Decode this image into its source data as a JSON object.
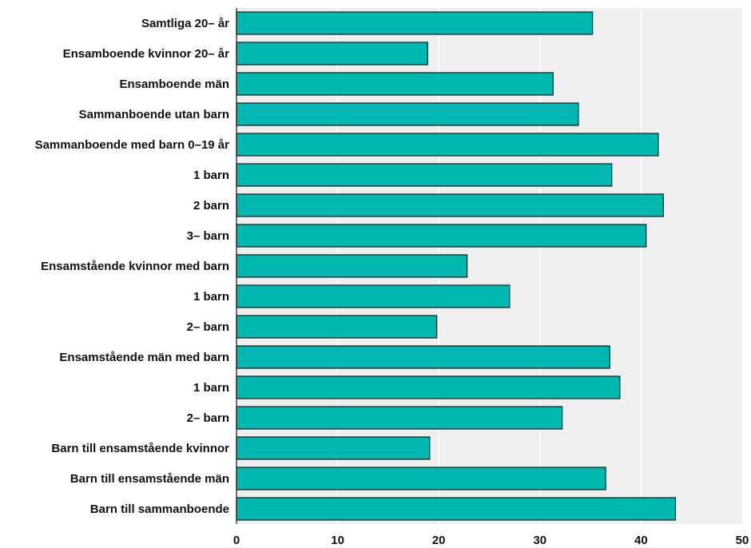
{
  "chart_data": {
    "type": "bar",
    "orientation": "horizontal",
    "title": "",
    "xlabel": "",
    "ylabel": "",
    "xlim": [
      0,
      50
    ],
    "x_ticks": [
      0,
      10,
      20,
      30,
      40,
      50
    ],
    "grid": "vertical",
    "categories": [
      "Samtliga 20– år",
      "Ensamboende kvinnor 20– år",
      "Ensamboende män",
      "Sammanboende utan barn",
      "Sammanboende med barn 0–19 år",
      "1 barn",
      "2 barn",
      "3– barn",
      "Ensamstående kvinnor med barn",
      "1 barn",
      "2– barn",
      "Ensamstående män med barn",
      "1 barn",
      "2– barn",
      "Barn till ensamstående kvinnor",
      "Barn till ensamstående män",
      "Barn till sammanboende"
    ],
    "values": [
      35.2,
      18.9,
      31.3,
      33.8,
      41.7,
      37.1,
      42.2,
      40.5,
      22.8,
      27.0,
      19.8,
      36.9,
      37.9,
      32.2,
      19.1,
      36.5,
      43.4
    ],
    "colors": {
      "bar": "#00b8b0",
      "plot_bg": "#efefef",
      "grid": "#ffffff"
    }
  }
}
